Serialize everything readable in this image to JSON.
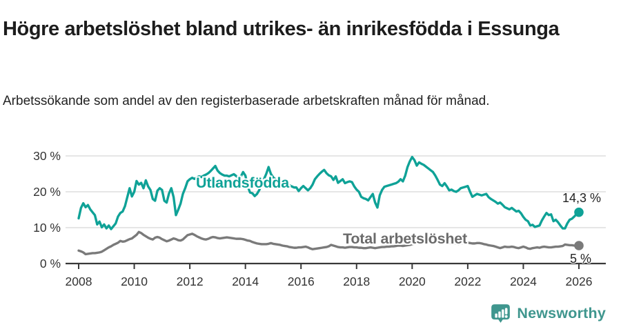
{
  "header": {
    "title": "Högre arbetslöshet bland utrikes- än inrikesfödda i Essunga",
    "subtitle": "Arbetssökande som andel av den registerbaserade arbetskraften månad för månad."
  },
  "footer": {
    "brand": "Newsworthy",
    "brand_color": "#3F968E"
  },
  "chart_data": {
    "type": "line",
    "title": "Högre arbetslöshet bland utrikes- än inrikesfödda i Essunga",
    "subtitle": "Arbetssökande som andel av den registerbaserade arbetskraften månad för månad.",
    "unit": "%",
    "frequency": "monthly",
    "x_start": "2008-01",
    "x_end": "2026-01",
    "x_tick_labels": [
      "2008",
      "2010",
      "2012",
      "2014",
      "2016",
      "2018",
      "2020",
      "2022",
      "2024",
      "2026"
    ],
    "y_ticks": [
      0,
      10,
      20,
      30
    ],
    "y_tick_labels": [
      "0 %",
      "10 %",
      "20 %",
      "30 %"
    ],
    "ylim": [
      0,
      31
    ],
    "grid": "horizontal",
    "legend_position": "inline-labels",
    "axis_color": "#383838",
    "gridline_color": "#dedede",
    "series": [
      {
        "name": "Utlandsfödda",
        "color": "#0FA297",
        "label_color": "#0FA297",
        "end_label": "14,3 %",
        "end_value": 14.3,
        "values": [
          12.6,
          15.5,
          16.8,
          15.7,
          16.3,
          15.1,
          14.3,
          13.5,
          10.9,
          11.7,
          10.1,
          10.9,
          9.8,
          10.6,
          9.6,
          10.4,
          11.2,
          13.1,
          14.1,
          14.5,
          16.0,
          18.5,
          21.0,
          18.7,
          20.0,
          23.0,
          22.0,
          22.5,
          21.0,
          23.2,
          21.5,
          20.5,
          18.0,
          17.5,
          20.3,
          21.0,
          20.5,
          17.5,
          17.0,
          19.5,
          21.0,
          18.5,
          13.5,
          15.0,
          16.7,
          19.4,
          21.0,
          22.9,
          23.5,
          23.9,
          23.6,
          24.0,
          24.3,
          24.1,
          24.5,
          24.8,
          25.2,
          25.8,
          26.5,
          27.2,
          25.9,
          25.2,
          24.8,
          24.5,
          24.5,
          24.3,
          24.6,
          24.9,
          24.4,
          24.0,
          24.2,
          25.5,
          24.5,
          21.5,
          19.8,
          19.6,
          18.8,
          19.4,
          20.5,
          22.0,
          23.5,
          25.0,
          26.9,
          25.0,
          24.0,
          23.5,
          23.0,
          22.7,
          22.5,
          22.2,
          22.0,
          21.8,
          21.5,
          21.2,
          21.2,
          20.2,
          21.0,
          21.6,
          21.0,
          20.4,
          21.0,
          22.0,
          23.5,
          24.3,
          25.0,
          25.6,
          26.1,
          25.2,
          24.6,
          24.3,
          23.3,
          24.3,
          22.5,
          23.0,
          23.5,
          22.4,
          22.7,
          22.9,
          22.7,
          21.5,
          20.6,
          20.0,
          18.6,
          18.2,
          18.0,
          17.6,
          18.5,
          19.4,
          17.0,
          15.6,
          19.0,
          20.5,
          21.4,
          21.6,
          21.8,
          22.0,
          22.2,
          22.4,
          22.8,
          23.5,
          22.9,
          24.5,
          26.9,
          28.5,
          29.7,
          28.8,
          27.3,
          28.2,
          27.8,
          27.5,
          27.0,
          26.5,
          26.0,
          25.5,
          24.5,
          23.3,
          22.0,
          21.6,
          22.4,
          21.5,
          20.4,
          20.6,
          20.2,
          20.0,
          20.4,
          21.0,
          21.2,
          21.4,
          21.6,
          20.0,
          18.6,
          19.0,
          19.4,
          19.2,
          19.0,
          19.2,
          19.4,
          18.5,
          18.0,
          17.6,
          17.2,
          16.7,
          17.0,
          16.4,
          15.7,
          15.4,
          15.1,
          15.5,
          15.0,
          14.5,
          14.7,
          14.0,
          13.0,
          12.2,
          11.8,
          10.6,
          10.8,
          10.2,
          10.4,
          10.6,
          12.0,
          13.1,
          14.1,
          13.5,
          13.7,
          11.8,
          12.2,
          11.5,
          10.6,
          9.8,
          9.8,
          11.2,
          12.2,
          12.5,
          13.1,
          13.8,
          14.3
        ]
      },
      {
        "name": "Total arbetslöshet",
        "color": "#7A7A7A",
        "label_color": "#6B6B6B",
        "end_label": "5 %",
        "end_value": 5.0,
        "values": [
          3.6,
          3.4,
          3.1,
          2.6,
          2.7,
          2.8,
          2.9,
          2.9,
          3.0,
          3.1,
          3.3,
          3.7,
          4.1,
          4.5,
          4.8,
          5.2,
          5.5,
          5.8,
          6.3,
          6.1,
          6.2,
          6.5,
          6.8,
          7.0,
          7.5,
          8.0,
          8.8,
          8.5,
          8.0,
          7.6,
          7.2,
          6.9,
          6.7,
          7.2,
          7.4,
          7.2,
          6.8,
          6.5,
          6.2,
          6.4,
          6.7,
          7.0,
          6.8,
          6.5,
          6.4,
          6.7,
          7.3,
          7.9,
          8.1,
          8.3,
          8.0,
          7.6,
          7.3,
          7.0,
          6.8,
          6.7,
          6.9,
          7.2,
          7.4,
          7.3,
          7.1,
          7.0,
          7.1,
          7.2,
          7.3,
          7.2,
          7.1,
          7.0,
          6.9,
          6.9,
          6.9,
          6.8,
          6.6,
          6.4,
          6.3,
          6.0,
          5.8,
          5.6,
          5.5,
          5.4,
          5.4,
          5.4,
          5.5,
          5.7,
          5.5,
          5.4,
          5.3,
          5.2,
          5.0,
          4.9,
          4.8,
          4.6,
          4.5,
          4.4,
          4.4,
          4.5,
          4.5,
          4.6,
          4.7,
          4.5,
          4.2,
          4.0,
          4.1,
          4.2,
          4.3,
          4.4,
          4.5,
          4.6,
          4.8,
          5.2,
          5.0,
          4.8,
          4.6,
          4.5,
          4.5,
          4.4,
          4.5,
          4.6,
          4.6,
          4.5,
          4.5,
          4.4,
          4.4,
          4.3,
          4.3,
          4.4,
          4.5,
          4.4,
          4.3,
          4.4,
          4.5,
          4.6,
          4.6,
          4.7,
          4.7,
          4.8,
          4.8,
          4.9,
          5.0,
          5.0,
          4.9,
          5.0,
          5.1,
          5.2,
          5.4,
          5.6,
          5.9,
          6.2,
          6.3,
          6.2,
          6.1,
          6.0,
          5.9,
          5.8,
          5.8,
          5.9,
          6.0,
          6.0,
          5.9,
          5.8,
          5.7,
          5.7,
          5.6,
          5.6,
          5.5,
          5.6,
          5.7,
          5.8,
          5.8,
          5.7,
          5.6,
          5.6,
          5.7,
          5.7,
          5.6,
          5.4,
          5.3,
          5.1,
          5.0,
          4.9,
          4.7,
          4.5,
          4.3,
          4.5,
          4.7,
          4.6,
          4.6,
          4.7,
          4.6,
          4.4,
          4.3,
          4.5,
          4.7,
          4.5,
          4.2,
          4.1,
          4.3,
          4.4,
          4.5,
          4.4,
          4.6,
          4.7,
          4.6,
          4.5,
          4.5,
          4.6,
          4.7,
          4.7,
          4.8,
          4.9,
          5.3,
          5.2,
          5.1,
          5.1,
          5.0,
          5.0,
          5.0
        ]
      }
    ]
  }
}
